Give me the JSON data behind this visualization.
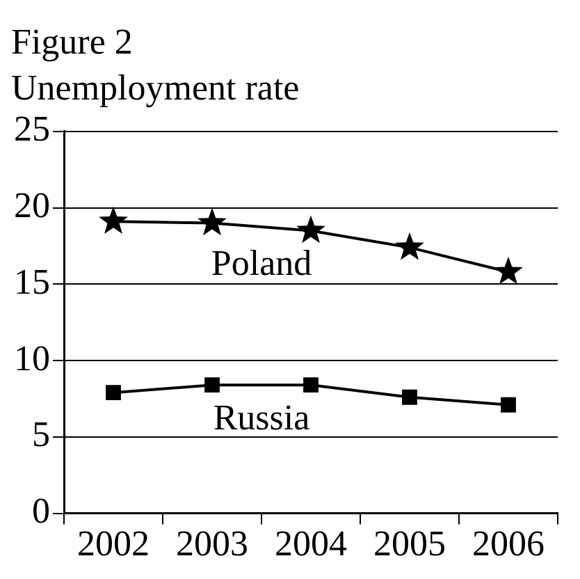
{
  "chart_data": {
    "type": "line",
    "title": "Figure 2",
    "subtitle": "Unemployment rate",
    "categories": [
      "2002",
      "2003",
      "2004",
      "2005",
      "2006"
    ],
    "series": [
      {
        "name": "Poland",
        "color": "#000000",
        "marker": "star",
        "values": [
          19.1,
          19.0,
          18.5,
          17.4,
          15.8
        ]
      },
      {
        "name": "Russia",
        "color": "#000000",
        "marker": "square",
        "values": [
          7.9,
          8.4,
          8.4,
          7.6,
          7.1
        ]
      }
    ],
    "ylim": [
      0,
      25
    ],
    "yticks": [
      0,
      5,
      10,
      15,
      20,
      25
    ],
    "grid": "y",
    "legend": false,
    "line_style": "solid"
  }
}
